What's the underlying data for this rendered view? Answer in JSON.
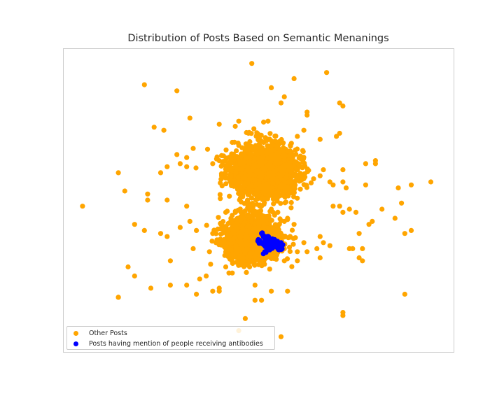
{
  "chart_data": {
    "type": "scatter",
    "title": "Distribution of Posts Based on Semantic Menanings",
    "xlabel": "",
    "ylabel": "",
    "xlim": [
      -0.1,
      1.1
    ],
    "ylim": [
      0.0,
      1.0
    ],
    "axes_visible": false,
    "grid": false,
    "legend_position": "lower-left",
    "series": [
      {
        "name": "Other Posts",
        "color": "#ffa500",
        "points": [
          [
            0.48,
            0.95
          ],
          [
            0.71,
            0.92
          ],
          [
            0.15,
            0.88
          ],
          [
            0.25,
            0.86
          ],
          [
            0.58,
            0.84
          ],
          [
            0.54,
            0.87
          ],
          [
            0.61,
            0.9
          ],
          [
            0.57,
            0.82
          ],
          [
            0.65,
            0.79
          ],
          [
            0.65,
            0.78
          ],
          [
            0.76,
            0.81
          ],
          [
            0.75,
            0.82
          ],
          [
            0.18,
            0.74
          ],
          [
            0.21,
            0.73
          ],
          [
            0.29,
            0.77
          ],
          [
            0.38,
            0.75
          ],
          [
            0.44,
            0.76
          ],
          [
            0.53,
            0.76
          ],
          [
            0.47,
            0.72
          ],
          [
            0.69,
            0.7
          ],
          [
            0.75,
            0.72
          ],
          [
            0.74,
            0.71
          ],
          [
            0.42,
            0.69
          ],
          [
            0.44,
            0.68
          ],
          [
            0.3,
            0.67
          ],
          [
            0.62,
            0.71
          ],
          [
            0.64,
            0.73
          ],
          [
            0.25,
            0.65
          ],
          [
            0.28,
            0.64
          ],
          [
            0.22,
            0.61
          ],
          [
            0.38,
            0.63
          ],
          [
            0.76,
            0.6
          ],
          [
            0.83,
            0.55
          ],
          [
            0.86,
            0.63
          ],
          [
            0.86,
            0.62
          ],
          [
            0.07,
            0.59
          ],
          [
            0.2,
            0.59
          ],
          [
            0.28,
            0.61
          ],
          [
            0.26,
            0.62
          ],
          [
            0.36,
            0.62
          ],
          [
            0.7,
            0.6
          ],
          [
            0.76,
            0.56
          ],
          [
            0.77,
            0.54
          ],
          [
            0.83,
            0.62
          ],
          [
            0.93,
            0.54
          ],
          [
            0.97,
            0.55
          ],
          [
            1.03,
            0.56
          ],
          [
            0.69,
            0.58
          ],
          [
            0.67,
            0.57
          ],
          [
            0.72,
            0.56
          ],
          [
            0.73,
            0.55
          ],
          [
            -0.04,
            0.48
          ],
          [
            0.09,
            0.53
          ],
          [
            0.16,
            0.52
          ],
          [
            0.16,
            0.5
          ],
          [
            0.22,
            0.5
          ],
          [
            0.28,
            0.48
          ],
          [
            0.43,
            0.46
          ],
          [
            0.73,
            0.48
          ],
          [
            0.75,
            0.48
          ],
          [
            0.78,
            0.47
          ],
          [
            0.84,
            0.42
          ],
          [
            0.85,
            0.43
          ],
          [
            0.88,
            0.47
          ],
          [
            0.92,
            0.44
          ],
          [
            0.94,
            0.49
          ],
          [
            0.95,
            0.39
          ],
          [
            0.97,
            0.4
          ],
          [
            0.76,
            0.46
          ],
          [
            0.8,
            0.46
          ],
          [
            0.2,
            0.39
          ],
          [
            0.22,
            0.38
          ],
          [
            0.26,
            0.41
          ],
          [
            0.12,
            0.42
          ],
          [
            0.15,
            0.4
          ],
          [
            0.29,
            0.43
          ],
          [
            0.31,
            0.4
          ],
          [
            0.3,
            0.34
          ],
          [
            0.37,
            0.36
          ],
          [
            0.35,
            0.33
          ],
          [
            0.53,
            0.32
          ],
          [
            0.58,
            0.34
          ],
          [
            0.64,
            0.36
          ],
          [
            0.68,
            0.34
          ],
          [
            0.7,
            0.36
          ],
          [
            0.72,
            0.35
          ],
          [
            0.78,
            0.34
          ],
          [
            0.79,
            0.34
          ],
          [
            0.81,
            0.39
          ],
          [
            0.69,
            0.38
          ],
          [
            0.65,
            0.33
          ],
          [
            0.62,
            0.33
          ],
          [
            0.1,
            0.28
          ],
          [
            0.12,
            0.25
          ],
          [
            0.23,
            0.3
          ],
          [
            0.32,
            0.24
          ],
          [
            0.34,
            0.25
          ],
          [
            0.36,
            0.2
          ],
          [
            0.4,
            0.28
          ],
          [
            0.42,
            0.26
          ],
          [
            0.49,
            0.22
          ],
          [
            0.54,
            0.2
          ],
          [
            0.58,
            0.3
          ],
          [
            0.62,
            0.3
          ],
          [
            0.69,
            0.31
          ],
          [
            0.81,
            0.31
          ],
          [
            0.82,
            0.34
          ],
          [
            0.82,
            0.3
          ],
          [
            0.95,
            0.19
          ],
          [
            0.07,
            0.18
          ],
          [
            0.07,
            0.18
          ],
          [
            0.17,
            0.21
          ],
          [
            0.23,
            0.22
          ],
          [
            0.28,
            0.22
          ],
          [
            0.31,
            0.19
          ],
          [
            0.38,
            0.21
          ],
          [
            0.38,
            0.2
          ],
          [
            0.41,
            0.26
          ],
          [
            0.49,
            0.17
          ],
          [
            0.51,
            0.17
          ],
          [
            0.59,
            0.2
          ],
          [
            0.76,
            0.12
          ],
          [
            0.76,
            0.13
          ],
          [
            0.46,
            0.11
          ],
          [
            0.44,
            0.07
          ],
          [
            0.57,
            0.05
          ],
          [
            0.36,
            0.39
          ],
          [
            0.4,
            0.46
          ],
          [
            0.42,
            0.45
          ],
          [
            0.44,
            0.43
          ],
          [
            0.5,
            0.46
          ],
          [
            0.54,
            0.47
          ],
          [
            0.56,
            0.46
          ],
          [
            0.47,
            0.49
          ],
          [
            0.51,
            0.48
          ],
          [
            0.59,
            0.44
          ],
          [
            0.58,
            0.43
          ],
          [
            0.61,
            0.42
          ]
        ]
      },
      {
        "name": "Posts having mention of people receiving antibodies",
        "color": "#0000ff",
        "points": [
          [
            0.5,
            0.37
          ],
          [
            0.51,
            0.36
          ],
          [
            0.52,
            0.37
          ],
          [
            0.53,
            0.36
          ],
          [
            0.52,
            0.35
          ],
          [
            0.53,
            0.35
          ],
          [
            0.54,
            0.37
          ],
          [
            0.55,
            0.37
          ],
          [
            0.56,
            0.36
          ],
          [
            0.54,
            0.36
          ],
          [
            0.55,
            0.35
          ],
          [
            0.53,
            0.34
          ],
          [
            0.54,
            0.34
          ],
          [
            0.56,
            0.34
          ],
          [
            0.57,
            0.34
          ],
          [
            0.52,
            0.38
          ],
          [
            0.51,
            0.39
          ],
          [
            0.53,
            0.38
          ],
          [
            0.55,
            0.36
          ],
          [
            0.57,
            0.36
          ],
          [
            0.52,
            0.33
          ]
        ]
      }
    ],
    "clusters": [
      {
        "series": "Other Posts",
        "center": [
          0.519,
          0.592
        ],
        "spread": [
          0.055,
          0.045
        ],
        "count": 2600
      },
      {
        "series": "Other Posts",
        "center": [
          0.478,
          0.375
        ],
        "spread": [
          0.045,
          0.038
        ],
        "count": 2000
      }
    ]
  }
}
